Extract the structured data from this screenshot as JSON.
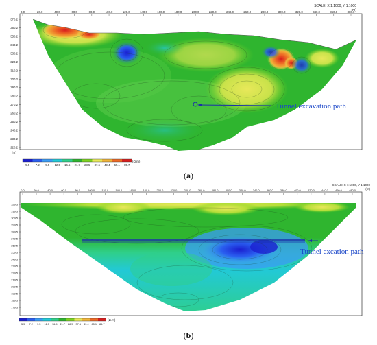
{
  "panel_a": {
    "scale_label": "SCALE: X 1:1000, Y 1:1000",
    "x_unit": "(m)",
    "y_unit": "(m)",
    "x_ticks": [
      "0.0",
      "20.0",
      "40.0",
      "60.0",
      "80.0",
      "100.0",
      "120.0",
      "140.0",
      "160.0",
      "180.0",
      "200.0",
      "220.0",
      "240.0",
      "260.0",
      "280.0",
      "300.0",
      "320.0",
      "340.0",
      "360.0",
      "380.0"
    ],
    "y_ticks": [
      "370.2",
      "360.2",
      "350.2",
      "340.2",
      "330.2",
      "320.2",
      "310.2",
      "300.2",
      "290.2",
      "280.2",
      "270.2",
      "260.2",
      "250.2",
      "240.2",
      "230.2",
      "220.2"
    ],
    "colorbar_values": [
      "5.5",
      "7.2",
      "9.5",
      "12.5",
      "16.5",
      "21.7",
      "28.5",
      "37.6",
      "49.4",
      "65.1",
      "85.7"
    ],
    "colorbar_unit": "(Ω.m)",
    "annotation": "Tunnel excavation path",
    "caption_letter": "a"
  },
  "panel_b": {
    "scale_label": "SCALE: X 1:1000, Y 1:1000",
    "x_unit": "(m)",
    "x_ticks": [
      "0.0",
      "20.0",
      "40.0",
      "60.0",
      "80.0",
      "100.0",
      "120.0",
      "140.0",
      "160.0",
      "180.0",
      "200.0",
      "220.0",
      "240.0",
      "260.0",
      "280.0",
      "300.0",
      "320.0",
      "340.0",
      "360.0",
      "380.0",
      "400.0",
      "420.0",
      "440.0",
      "460.0",
      "480.0"
    ],
    "y_ticks": [
      "329.5",
      "319.5",
      "309.5",
      "299.5",
      "289.5",
      "279.5",
      "269.5",
      "259.5",
      "249.5",
      "239.5",
      "229.5",
      "219.5",
      "209.5",
      "199.5",
      "189.5",
      "179.5"
    ],
    "colorbar_values": [
      "5.5",
      "7.2",
      "9.5",
      "12.5",
      "16.5",
      "21.7",
      "28.5",
      "37.6",
      "49.4",
      "65.1",
      "85.7"
    ],
    "colorbar_unit": "(Ω.m)",
    "annotation": "Tunnel excation path",
    "caption_letter": "b"
  },
  "colors": {
    "scale": [
      "#1a1fd0",
      "#2a5ff0",
      "#3a9cf5",
      "#22c9d6",
      "#2fcf8a",
      "#2fb52f",
      "#7ed321",
      "#e8e85a",
      "#f0b43a",
      "#ee6a25",
      "#d81e1e"
    ],
    "annotation": "#1a46c8",
    "tunnel_line": "#1a2fa8"
  }
}
